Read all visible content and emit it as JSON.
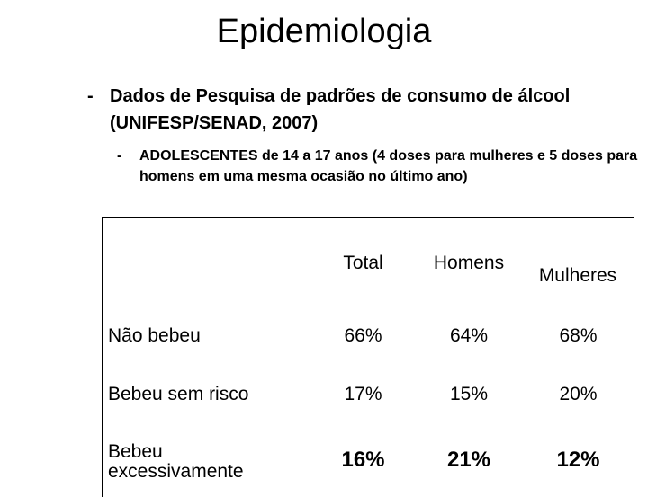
{
  "header": {
    "title": "Epidemiologia"
  },
  "bullets": [
    {
      "marker": "-",
      "text": "Dados de Pesquisa de padrões de consumo de álcool (UNIFESP/SENAD, 2007)",
      "sub": {
        "marker": "-",
        "text": "ADOLESCENTES de 14 a 17 anos (4 doses para mulheres e 5 doses para homens em uma mesma ocasião no último ano)"
      }
    }
  ],
  "table": {
    "columns": [
      "Total",
      "Homens",
      "Mulheres"
    ],
    "rows": [
      [
        "Não bebeu",
        "66%",
        "64%",
        "68%"
      ],
      [
        "Bebeu sem risco",
        "17%",
        "15%",
        "20%"
      ],
      [
        "Bebeu excessivamente",
        "16%",
        "21%",
        "12%"
      ]
    ]
  }
}
